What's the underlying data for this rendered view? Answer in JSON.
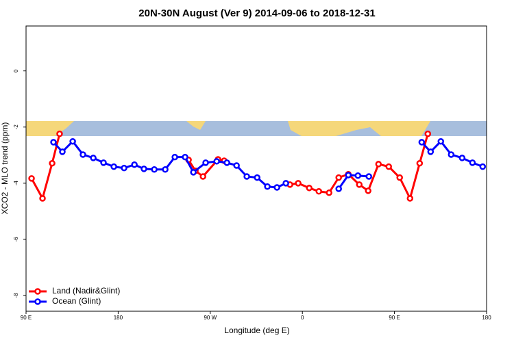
{
  "chart_data": {
    "type": "line",
    "title": "20N-30N August (Ver 9)   2014-09-06 to 2018-12-31",
    "x_label": "Longitude (deg E)",
    "y_label": "XCO2 - MLO trend (ppm)",
    "xlim": [
      90,
      540
    ],
    "ylim": [
      -8.56,
      1.6
    ],
    "xticks": [
      {
        "value": 90,
        "label": "90 E"
      },
      180,
      {
        "value": 270,
        "label": "90 W"
      },
      {
        "value": 360,
        "label": "0"
      },
      {
        "value": 450,
        "label": "90 E"
      },
      {
        "value": 540,
        "label": "180"
      }
    ],
    "yticks": [
      0,
      -2,
      -4,
      -6,
      -8
    ],
    "legend": "bottom-left",
    "series": [
      {
        "name": "Land (Nadir&Glint)",
        "color": "#ff0000",
        "x": [
          95.4,
          106.1,
          115.5,
          122.8,
          null,
          248.8,
          255.5,
          262.9,
          277.6,
          283.6,
          null,
          347.9,
          355.9,
          366.7,
          376.1,
          386.1,
          395.5,
          404.9,
          415.6,
          424.3,
          434.4,
          444.4,
          455.1,
          465.2,
          474.6,
          482.6
        ],
        "values": [
          -3.83,
          -4.54,
          -3.29,
          -2.24,
          null,
          -3.17,
          -3.56,
          -3.76,
          -3.15,
          -3.2,
          null,
          -4.05,
          -4.0,
          -4.17,
          -4.29,
          -4.34,
          -3.8,
          -3.68,
          -4.05,
          -4.27,
          -3.32,
          -3.41,
          -3.8,
          -4.54,
          -3.29,
          -2.24
        ]
      },
      {
        "name": "Ocean (Glint)",
        "color": "#0000ff",
        "x": [
          116.8,
          125.5,
          135.6,
          145.6,
          155.7,
          165.7,
          175.8,
          185.8,
          195.9,
          205.2,
          215.3,
          226.0,
          235.4,
          245.4,
          253.5,
          265.5,
          276.3,
          286.3,
          295.7,
          305.7,
          315.8,
          325.8,
          335.2,
          343.9,
          null,
          395.5,
          404.9,
          414.3,
          425.0,
          null,
          476.6,
          485.3,
          495.3,
          505.4,
          516.1,
          526.2,
          536.2
        ],
        "values": [
          -2.54,
          -2.88,
          -2.51,
          -2.98,
          -3.1,
          -3.27,
          -3.41,
          -3.46,
          -3.34,
          -3.49,
          -3.51,
          -3.51,
          -3.07,
          -3.07,
          -3.61,
          -3.27,
          -3.22,
          -3.27,
          -3.37,
          -3.76,
          -3.8,
          -4.12,
          -4.15,
          -4.0,
          null,
          -4.2,
          -3.71,
          -3.73,
          -3.76,
          null,
          -2.54,
          -2.88,
          -2.51,
          -2.98,
          -3.1,
          -3.27,
          -3.41
        ]
      }
    ]
  }
}
